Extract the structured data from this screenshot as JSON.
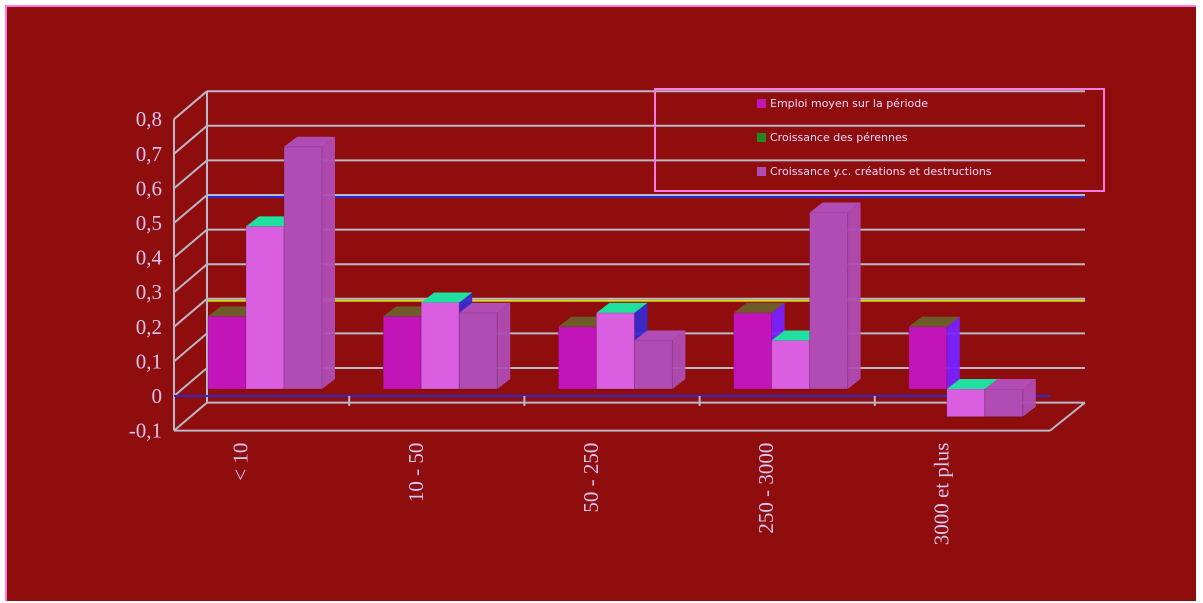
{
  "chart_data": {
    "type": "bar",
    "categories": [
      "< 10",
      "10 - 50",
      "50 - 250",
      "250 - 3000",
      "3000 et plus"
    ],
    "series": [
      {
        "name": "Emploi moyen sur la période",
        "values": [
          0.21,
          0.21,
          0.18,
          0.22,
          0.18
        ]
      },
      {
        "name": "Croissance des pérennes",
        "values": [
          0.47,
          0.25,
          0.22,
          0.14,
          -0.08
        ]
      },
      {
        "name": "Croissance y.c. créations et destructions",
        "values": [
          0.7,
          0.22,
          0.14,
          0.51,
          -0.08
        ]
      }
    ],
    "y_ticks": [
      "0,8",
      "0,7",
      "0,6",
      "0,5",
      "0,4",
      "0,3",
      "0,2",
      "0,1",
      "0",
      "-0,1"
    ],
    "ylim": [
      -0.1,
      0.8
    ],
    "title": "",
    "xlabel": "",
    "ylabel": "",
    "legend_position": "top-right",
    "grid": true,
    "colors": {
      "background": "#8f0d0d",
      "series": [
        "#c214b8",
        "#d95fe0",
        "#b04cb4"
      ],
      "legend_swatches": [
        "#c214b8",
        "#1f8a1f",
        "#b04cb4"
      ],
      "tops": [
        "#6f5a2a",
        "#20e0a0",
        "#b04cb4"
      ],
      "gridline": "#b9b7c9",
      "highlight_line_blue": "#2b2bd6",
      "highlight_line_yellow": "#d6d61a",
      "axis_text": "#d8c4f0",
      "border": "#ff79e2"
    }
  }
}
